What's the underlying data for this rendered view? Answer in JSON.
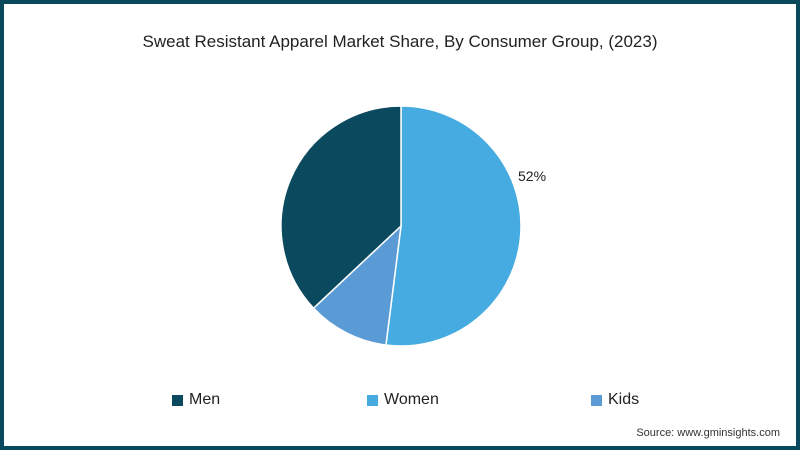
{
  "chart_data": {
    "type": "pie",
    "title": "Sweat Resistant Apparel Market Share, By Consumer Group, (2023)",
    "categories": [
      "Men",
      "Women",
      "Kids"
    ],
    "values": [
      37,
      52,
      11
    ],
    "colors": [
      "#0b4a5e",
      "#45abe0",
      "#5b9bd5"
    ],
    "data_labels": [
      {
        "category": "Women",
        "text": "52%"
      }
    ],
    "legend_position": "bottom"
  },
  "title": "Sweat Resistant Apparel Market Share, By Consumer Group, (2023)",
  "label_women": "52%",
  "legend": [
    {
      "label": "Men",
      "color": "#0b4a5e"
    },
    {
      "label": "Women",
      "color": "#45abe0"
    },
    {
      "label": "Kids",
      "color": "#5b9bd5"
    }
  ],
  "source": "Source: www.gminsights.com"
}
